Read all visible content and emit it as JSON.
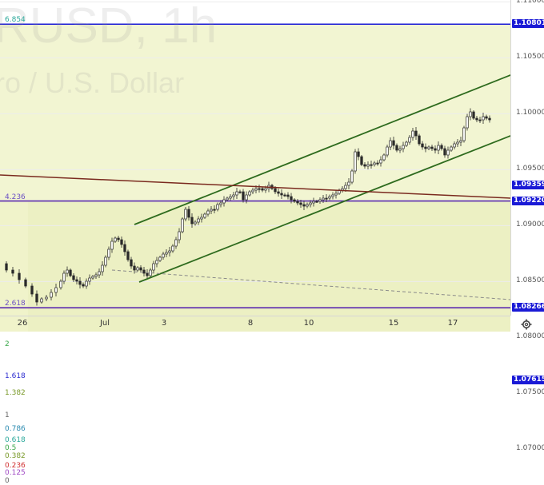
{
  "watermark": {
    "line1": "RUSD, 1h",
    "line2": "ro / U.S. Dollar"
  },
  "colors": {
    "fib_band": "#eef2c4",
    "fib_band_light": "#f2f5d2",
    "hline_blue": "#1a1ad6",
    "hline_purple": "#5b2bb0",
    "channel": "#2e6b1e",
    "trend_brown": "#7a2a1f",
    "candle": "#2a2a2a",
    "badge_blue": "#1a1ad6"
  },
  "price_axis": {
    "ticks": [
      "1.11000",
      "1.10500",
      "1.10000",
      "1.09500",
      "1.09000",
      "1.08500",
      "1.08000",
      "1.07500",
      "1.07000"
    ],
    "badges": [
      {
        "label": "1.10801",
        "price": 1.10801
      },
      {
        "label": "1.09359",
        "price": 1.09359
      },
      {
        "label": "1.09220",
        "price": 1.0922
      },
      {
        "label": "1.08266",
        "price": 1.08266
      },
      {
        "label": "1.07615",
        "price": 1.07615
      }
    ]
  },
  "time_axis": {
    "labels": [
      "26",
      "Jul",
      "3",
      "8",
      "10",
      "15",
      "17"
    ]
  },
  "fib_levels": [
    {
      "label": "6.854",
      "price": 1.10801,
      "color": "#2aa89a"
    },
    {
      "label": "4.236",
      "price": 1.0922,
      "color": "#6a4fc4"
    },
    {
      "label": "2.618",
      "price": 1.08266,
      "color": "#6a4fc4"
    },
    {
      "label": "2",
      "price": 1.079,
      "color": "#3aa84a"
    },
    {
      "label": "1.618",
      "price": 1.07615,
      "color": "#2a2ad0"
    },
    {
      "label": "1.382",
      "price": 1.0747,
      "color": "#7a9a2a"
    },
    {
      "label": "1",
      "price": 1.0727,
      "color": "#666666"
    },
    {
      "label": "0.786",
      "price": 1.07145,
      "color": "#2a8ab0"
    },
    {
      "label": "0.618",
      "price": 1.07045,
      "color": "#2aa89a"
    },
    {
      "label": "0.5",
      "price": 1.06975,
      "color": "#3aa84a"
    },
    {
      "label": "0.382",
      "price": 1.06905,
      "color": "#7a9a2a"
    },
    {
      "label": "0.236",
      "price": 1.0682,
      "color": "#d03030"
    },
    {
      "label": "0.125",
      "price": 1.06755,
      "color": "#a04ac4"
    },
    {
      "label": "0",
      "price": 1.0668,
      "color": "#666666"
    }
  ],
  "toolbar": {
    "settings_icon": "gear-icon"
  }
}
